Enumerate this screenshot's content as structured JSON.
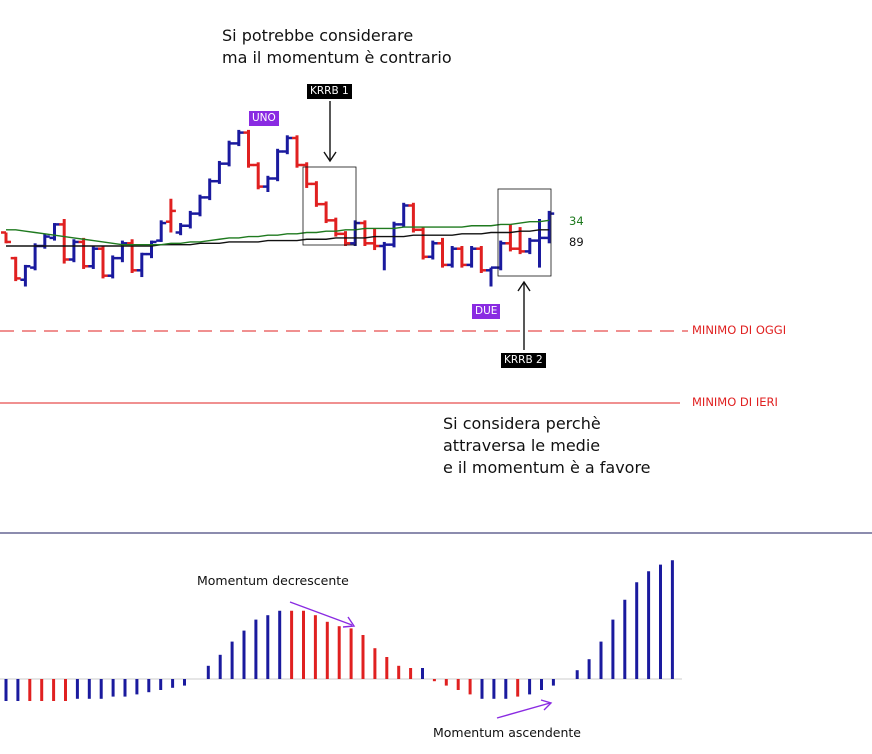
{
  "annotations": {
    "top_note_line1": "Si potrebbe considerare",
    "top_note_line2": "ma il momentum è contrario",
    "bottom_note_line1": "Si considera perchè",
    "bottom_note_line2": "attraversa le medie",
    "bottom_note_line3": "e il momentum è a favore",
    "tag_uno": "UNO",
    "tag_due": "DUE",
    "krrb1": "KRRB 1",
    "krrb2": "KRRB 2",
    "level_today": "MINIMO DI OGGI",
    "level_yesterday": "MINIMO DI IERI",
    "ma_fast": "34",
    "ma_slow": "89",
    "momentum_down": "Momentum decrescente",
    "momentum_up": "Momentum ascendente"
  },
  "colors": {
    "up": "#1a1a9e",
    "down": "#e02020",
    "ma34": "#1f7a1f",
    "ma89": "#111111",
    "tag_bg": "#8a2be2",
    "krrb_bg": "#000000",
    "arrow": "#8a2be2"
  },
  "chart_data": [
    {
      "type": "ohlc",
      "description_scale": "relative price units (higher = higher price)",
      "ylim": [
        0,
        100
      ],
      "bars": [
        {
          "o": 50,
          "h": 50,
          "l": 42,
          "c": 43,
          "d": "down"
        },
        {
          "o": 31,
          "h": 32,
          "l": 14,
          "c": 16,
          "d": "down"
        },
        {
          "o": 15,
          "h": 26,
          "l": 10,
          "c": 25,
          "d": "up"
        },
        {
          "o": 24,
          "h": 42,
          "l": 22,
          "c": 40,
          "d": "up"
        },
        {
          "o": 40,
          "h": 49,
          "l": 38,
          "c": 47,
          "d": "up"
        },
        {
          "o": 46,
          "h": 57,
          "l": 44,
          "c": 56,
          "d": "up"
        },
        {
          "o": 56,
          "h": 60,
          "l": 27,
          "c": 30,
          "d": "down"
        },
        {
          "o": 30,
          "h": 45,
          "l": 28,
          "c": 43,
          "d": "up"
        },
        {
          "o": 43,
          "h": 46,
          "l": 23,
          "c": 25,
          "d": "down"
        },
        {
          "o": 25,
          "h": 40,
          "l": 23,
          "c": 38,
          "d": "up"
        },
        {
          "o": 38,
          "h": 40,
          "l": 16,
          "c": 18,
          "d": "down"
        },
        {
          "o": 18,
          "h": 33,
          "l": 16,
          "c": 31,
          "d": "up"
        },
        {
          "o": 31,
          "h": 44,
          "l": 28,
          "c": 42,
          "d": "up"
        },
        {
          "o": 42,
          "h": 45,
          "l": 20,
          "c": 22,
          "d": "down"
        },
        {
          "o": 22,
          "h": 35,
          "l": 17,
          "c": 34,
          "d": "up"
        },
        {
          "o": 34,
          "h": 44,
          "l": 31,
          "c": 43,
          "d": "up"
        },
        {
          "o": 44,
          "h": 59,
          "l": 43,
          "c": 57,
          "d": "up"
        },
        {
          "o": 58,
          "h": 75,
          "l": 50,
          "c": 66,
          "d": "down"
        },
        {
          "o": 50,
          "h": 57,
          "l": 48,
          "c": 55,
          "d": "up"
        },
        {
          "o": 55,
          "h": 66,
          "l": 53,
          "c": 64,
          "d": "up"
        },
        {
          "o": 64,
          "h": 78,
          "l": 62,
          "c": 76,
          "d": "up"
        },
        {
          "o": 76,
          "h": 90,
          "l": 74,
          "c": 88,
          "d": "up"
        },
        {
          "o": 88,
          "h": 103,
          "l": 86,
          "c": 101,
          "d": "up"
        },
        {
          "o": 101,
          "h": 118,
          "l": 99,
          "c": 116,
          "d": "up"
        },
        {
          "o": 116,
          "h": 126,
          "l": 114,
          "c": 124,
          "d": "up"
        },
        {
          "o": 124,
          "h": 126,
          "l": 98,
          "c": 100,
          "d": "down"
        },
        {
          "o": 100,
          "h": 102,
          "l": 82,
          "c": 84,
          "d": "down"
        },
        {
          "o": 84,
          "h": 92,
          "l": 80,
          "c": 90,
          "d": "up"
        },
        {
          "o": 90,
          "h": 112,
          "l": 88,
          "c": 110,
          "d": "up"
        },
        {
          "o": 110,
          "h": 122,
          "l": 108,
          "c": 120,
          "d": "up"
        },
        {
          "o": 120,
          "h": 122,
          "l": 98,
          "c": 100,
          "d": "down"
        },
        {
          "o": 100,
          "h": 102,
          "l": 83,
          "c": 86,
          "d": "down"
        },
        {
          "o": 86,
          "h": 88,
          "l": 69,
          "c": 71,
          "d": "down"
        },
        {
          "o": 71,
          "h": 73,
          "l": 57,
          "c": 59,
          "d": "down"
        },
        {
          "o": 59,
          "h": 61,
          "l": 47,
          "c": 49,
          "d": "down"
        },
        {
          "o": 49,
          "h": 51,
          "l": 40,
          "c": 42,
          "d": "down"
        },
        {
          "o": 42,
          "h": 59,
          "l": 40,
          "c": 57,
          "d": "up"
        },
        {
          "o": 57,
          "h": 59,
          "l": 40,
          "c": 42,
          "d": "down"
        },
        {
          "o": 42,
          "h": 53,
          "l": 37,
          "c": 40,
          "d": "down"
        },
        {
          "o": 40,
          "h": 43,
          "l": 22,
          "c": 41,
          "d": "up"
        },
        {
          "o": 41,
          "h": 58,
          "l": 39,
          "c": 56,
          "d": "up"
        },
        {
          "o": 56,
          "h": 72,
          "l": 54,
          "c": 70,
          "d": "up"
        },
        {
          "o": 70,
          "h": 72,
          "l": 50,
          "c": 52,
          "d": "down"
        },
        {
          "o": 52,
          "h": 54,
          "l": 30,
          "c": 32,
          "d": "down"
        },
        {
          "o": 32,
          "h": 44,
          "l": 30,
          "c": 42,
          "d": "up"
        },
        {
          "o": 42,
          "h": 46,
          "l": 24,
          "c": 26,
          "d": "down"
        },
        {
          "o": 26,
          "h": 40,
          "l": 24,
          "c": 38,
          "d": "up"
        },
        {
          "o": 38,
          "h": 40,
          "l": 24,
          "c": 26,
          "d": "down"
        },
        {
          "o": 26,
          "h": 40,
          "l": 24,
          "c": 38,
          "d": "up"
        },
        {
          "o": 38,
          "h": 40,
          "l": 20,
          "c": 22,
          "d": "down"
        },
        {
          "o": 22,
          "h": 24,
          "l": 10,
          "c": 24,
          "d": "up"
        },
        {
          "o": 24,
          "h": 44,
          "l": 22,
          "c": 42,
          "d": "up"
        },
        {
          "o": 42,
          "h": 56,
          "l": 36,
          "c": 38,
          "d": "down"
        },
        {
          "o": 38,
          "h": 54,
          "l": 34,
          "c": 36,
          "d": "down"
        },
        {
          "o": 36,
          "h": 46,
          "l": 34,
          "c": 44,
          "d": "up"
        },
        {
          "o": 44,
          "h": 60,
          "l": 24,
          "c": 46,
          "d": "up"
        },
        {
          "o": 46,
          "h": 66,
          "l": 42,
          "c": 64,
          "d": "up"
        }
      ],
      "ma34": [
        52,
        52,
        51,
        50,
        49,
        48,
        47,
        46,
        45,
        44,
        43,
        42,
        41,
        41,
        41,
        41,
        41,
        42,
        42,
        43,
        43,
        44,
        45,
        46,
        46,
        47,
        47,
        48,
        48,
        49,
        49,
        50,
        50,
        51,
        51,
        52,
        52,
        53,
        53,
        53,
        53,
        54,
        54,
        54,
        54,
        54,
        54,
        54,
        55,
        55,
        55,
        56,
        56,
        57,
        58,
        58,
        59
      ],
      "ma89": [
        40,
        40,
        40,
        40,
        40,
        40,
        40,
        40,
        40,
        40,
        40,
        40,
        40,
        40,
        40,
        40,
        41,
        41,
        41,
        41,
        42,
        42,
        42,
        43,
        43,
        43,
        43,
        44,
        44,
        44,
        44,
        45,
        45,
        45,
        46,
        46,
        46,
        46,
        47,
        47,
        47,
        47,
        48,
        48,
        48,
        48,
        48,
        49,
        49,
        49,
        50,
        50,
        50,
        51,
        51,
        52,
        52
      ],
      "levels": {
        "minimo_di_oggi": -1,
        "minimo_di_ieri": -32
      }
    },
    {
      "type": "bar",
      "name": "momentum",
      "values": [
        -20,
        -20,
        -20,
        -20,
        -20,
        -20,
        -18,
        -18,
        -18,
        -16,
        -16,
        -14,
        -12,
        -10,
        -8,
        -6,
        0,
        12,
        22,
        34,
        44,
        54,
        58,
        62,
        62,
        62,
        58,
        52,
        48,
        46,
        40,
        28,
        20,
        12,
        10,
        10,
        -2,
        -6,
        -10,
        -14,
        -18,
        -18,
        -18,
        -16,
        -14,
        -10,
        -6,
        0,
        8,
        18,
        34,
        54,
        72,
        88,
        98,
        104,
        108
      ],
      "colors": [
        "u",
        "u",
        "d",
        "d",
        "d",
        "d",
        "u",
        "u",
        "u",
        "u",
        "u",
        "u",
        "u",
        "u",
        "u",
        "u",
        "u",
        "u",
        "u",
        "u",
        "u",
        "u",
        "u",
        "u",
        "d",
        "d",
        "d",
        "d",
        "d",
        "d",
        "d",
        "d",
        "d",
        "d",
        "d",
        "u",
        "d",
        "d",
        "d",
        "d",
        "u",
        "u",
        "u",
        "d",
        "u",
        "u",
        "u",
        "u",
        "u",
        "u",
        "u",
        "u",
        "u",
        "u",
        "u",
        "u",
        "u"
      ]
    }
  ]
}
